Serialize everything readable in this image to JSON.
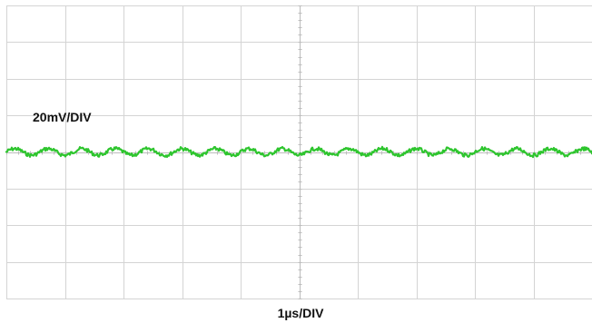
{
  "chart_data": {
    "type": "line",
    "title": "",
    "xlabel": "1µs/DIV",
    "ylabel": "20mV/DIV",
    "divisions": {
      "x": 10,
      "y": 8
    },
    "xlim": [
      0,
      10
    ],
    "ylim": [
      -4,
      4
    ],
    "grid": true,
    "colors": {
      "trace": "#2ec52e",
      "grid": "#d4d4d4",
      "center_axis": "#bdbdbd",
      "background": "#ffffff"
    },
    "series": [
      {
        "offset_div": 0,
        "ripple_pp_div": 0.18,
        "ripple_cycles_in_view": 17.5,
        "noise_div": 0.05
      }
    ]
  }
}
